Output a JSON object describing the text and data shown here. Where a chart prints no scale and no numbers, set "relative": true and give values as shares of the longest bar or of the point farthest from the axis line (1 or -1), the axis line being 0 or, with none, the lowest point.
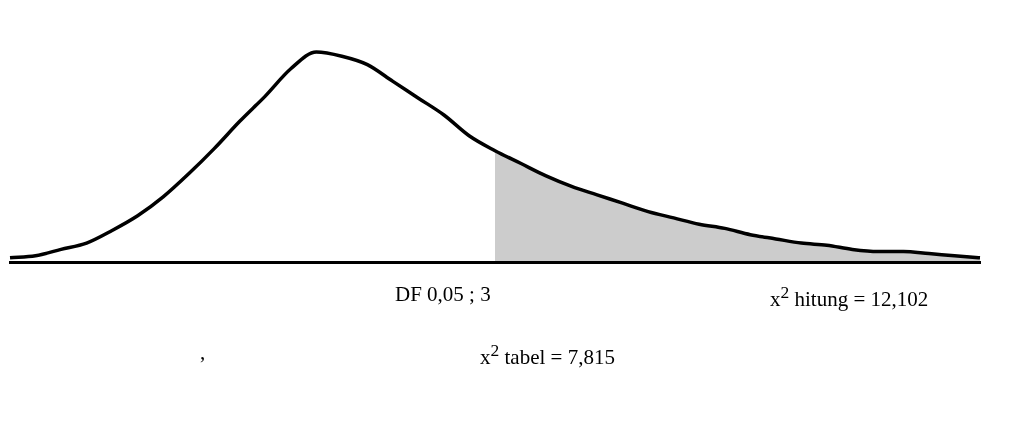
{
  "chart_data": {
    "type": "line",
    "relative": true,
    "categories": [
      null,
      null,
      null,
      null,
      null,
      null,
      null,
      null,
      null,
      null,
      null,
      null,
      null,
      null,
      null,
      null,
      null,
      null,
      null,
      null,
      null,
      null,
      null,
      null,
      null,
      null,
      null,
      null,
      null,
      null,
      null,
      null,
      null,
      null,
      null,
      null,
      null,
      null,
      null
    ],
    "series": [
      {
        "color": "#000000",
        "values": [
          0.02,
          0.03,
          0.06,
          0.09,
          0.15,
          0.22,
          0.31,
          0.42,
          0.54,
          0.67,
          0.79,
          0.92,
          1.0,
          0.98,
          0.94,
          0.86,
          0.78,
          0.7,
          0.6,
          0.53,
          0.47,
          0.41,
          0.36,
          0.32,
          0.28,
          0.24,
          0.21,
          0.18,
          0.16,
          0.13,
          0.11,
          0.09,
          0.08,
          0.06,
          0.05,
          0.05,
          0.04,
          0.03,
          0.02
        ]
      },
      {
        "type": "area",
        "color": "#000000",
        "values": [
          null,
          null,
          null,
          null,
          null,
          null,
          null,
          null,
          null,
          null,
          null,
          null,
          null,
          null,
          null,
          null,
          null,
          null,
          null,
          0.53,
          0.47,
          0.41,
          0.36,
          0.32,
          0.28,
          0.24,
          0.21,
          0.18,
          0.16,
          0.13,
          0.11,
          0.09,
          0.08,
          0.06,
          0.05,
          0.05,
          0.04,
          0.03,
          0.02
        ]
      }
    ],
    "annotations": [
      "DF 0,05 ; 3",
      "x$^{2}$ hitung = 12,102",
      ",",
      "x$^{2}$ tabel = 7,815"
    ]
  }
}
